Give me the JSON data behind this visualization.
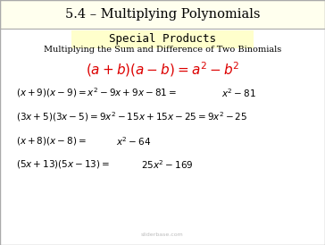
{
  "title": "5.4 – Multiplying Polynomials",
  "subtitle": "Special Products",
  "title_bg": "#ffffee",
  "subtitle_bg": "#ffffcc",
  "main_bg": "#ffffff",
  "border_color": "#aaaaaa",
  "heading_text": "Multiplying the Sum and Difference of Two Binomials",
  "formula_color": "#dd0000",
  "text_color": "#000000",
  "watermark": "sliderbase.com",
  "figsize": [
    3.64,
    2.74
  ],
  "dpi": 100
}
